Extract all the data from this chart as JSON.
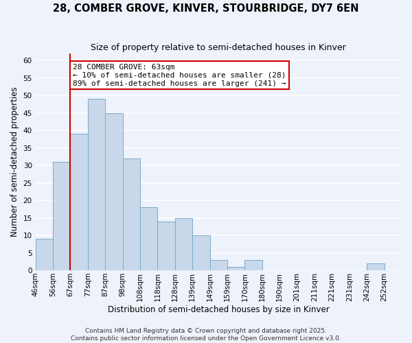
{
  "title": "28, COMBER GROVE, KINVER, STOURBRIDGE, DY7 6EN",
  "subtitle": "Size of property relative to semi-detached houses in Kinver",
  "xlabel": "Distribution of semi-detached houses by size in Kinver",
  "ylabel": "Number of semi-detached properties",
  "bin_labels": [
    "46sqm",
    "56sqm",
    "67sqm",
    "77sqm",
    "87sqm",
    "98sqm",
    "108sqm",
    "118sqm",
    "128sqm",
    "139sqm",
    "149sqm",
    "159sqm",
    "170sqm",
    "180sqm",
    "190sqm",
    "201sqm",
    "211sqm",
    "221sqm",
    "231sqm",
    "242sqm",
    "252sqm"
  ],
  "counts": [
    9,
    31,
    39,
    49,
    45,
    32,
    18,
    14,
    15,
    10,
    3,
    1,
    3,
    0,
    0,
    0,
    0,
    0,
    0,
    2,
    0
  ],
  "bar_color": "#c8d8ea",
  "bar_edge_color": "#7aaac8",
  "property_bin_index": 2,
  "redline_color": "#cc0000",
  "annotation_text": "28 COMBER GROVE: 63sqm\n← 10% of semi-detached houses are smaller (28)\n89% of semi-detached houses are larger (241) →",
  "annotation_box_color": "#ffffff",
  "annotation_box_edge_color": "#cc0000",
  "ylim": [
    0,
    62
  ],
  "yticks": [
    0,
    5,
    10,
    15,
    20,
    25,
    30,
    35,
    40,
    45,
    50,
    55,
    60
  ],
  "background_color": "#eef2fb",
  "grid_color": "#ffffff",
  "footer_line1": "Contains HM Land Registry data © Crown copyright and database right 2025.",
  "footer_line2": "Contains public sector information licensed under the Open Government Licence v3.0.",
  "title_fontsize": 10.5,
  "subtitle_fontsize": 9,
  "axis_label_fontsize": 8.5,
  "tick_fontsize": 7.5,
  "annotation_fontsize": 8,
  "footer_fontsize": 6.5
}
